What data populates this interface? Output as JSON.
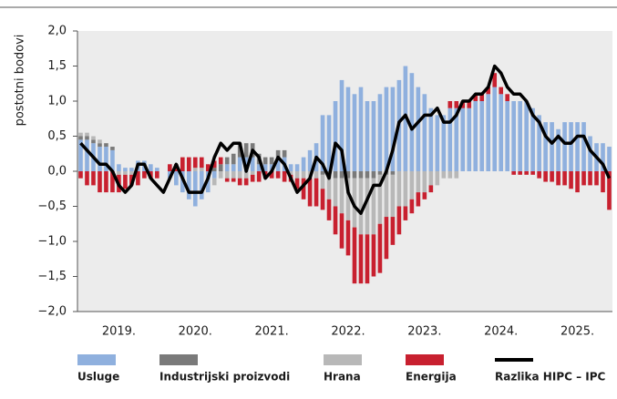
{
  "chart_data": {
    "type": "bar",
    "stacked": true,
    "ylabel": "postotni bodovi",
    "categories": [
      null,
      null,
      null,
      null,
      null,
      null,
      "2019.",
      null,
      null,
      null,
      null,
      null,
      null,
      null,
      null,
      null,
      null,
      null,
      "2020.",
      null,
      null,
      null,
      null,
      null,
      null,
      null,
      null,
      null,
      null,
      null,
      "2021.",
      null,
      null,
      null,
      null,
      null,
      null,
      null,
      null,
      null,
      null,
      null,
      "2022.",
      null,
      null,
      null,
      null,
      null,
      null,
      null,
      null,
      null,
      null,
      null,
      "2023.",
      null,
      null,
      null,
      null,
      null,
      null,
      null,
      null,
      null,
      null,
      null,
      "2024.",
      null,
      null,
      null,
      null,
      null,
      null,
      null,
      null,
      null,
      null,
      null,
      "2025.",
      null,
      null,
      null,
      null,
      null
    ],
    "ylim": [
      -2,
      2
    ],
    "yticks": [
      {
        "value": -2,
        "label": "−2,0"
      },
      {
        "value": -1.5,
        "label": "−1,5"
      },
      {
        "value": -1,
        "label": "−1,0"
      },
      {
        "value": -0.5,
        "label": "−0,5"
      },
      {
        "value": 0,
        "label": "0,0"
      },
      {
        "value": 0.5,
        "label": "0,5"
      },
      {
        "value": 1,
        "label": "1,0"
      },
      {
        "value": 1.5,
        "label": "1,5"
      },
      {
        "value": 2,
        "label": "2,0"
      }
    ],
    "series": [
      {
        "name": "Usluge",
        "color": "#8fb0de",
        "values": [
          0.45,
          0.45,
          0.4,
          0.35,
          0.35,
          0.3,
          0.1,
          0.05,
          0.05,
          0.15,
          0.15,
          0.1,
          0.05,
          0,
          -0.1,
          -0.2,
          -0.3,
          -0.4,
          -0.5,
          -0.4,
          -0.3,
          -0.1,
          0,
          0.1,
          0.1,
          0.2,
          0.2,
          0.2,
          0.1,
          0.1,
          0.1,
          0.2,
          0.2,
          0.1,
          0.1,
          0.2,
          0.3,
          0.4,
          0.8,
          0.8,
          1.0,
          1.3,
          1.2,
          1.1,
          1.2,
          1.0,
          1.0,
          1.1,
          1.2,
          1.2,
          1.3,
          1.5,
          1.4,
          1.2,
          1.1,
          0.9,
          0.8,
          0.8,
          0.9,
          0.9,
          0.9,
          0.9,
          1.0,
          1.0,
          1.1,
          1.2,
          1.1,
          1.0,
          1.0,
          1.0,
          1.0,
          0.9,
          0.8,
          0.7,
          0.7,
          0.6,
          0.7,
          0.7,
          0.7,
          0.7,
          0.5,
          0.4,
          0.4,
          0.35
        ]
      },
      {
        "name": "Industrijski proizvodi",
        "color": "#7a7a7a",
        "values": [
          0.05,
          0.05,
          0.05,
          0.05,
          0.05,
          0.05,
          0,
          0,
          0,
          0,
          0,
          0,
          0,
          0,
          0,
          0,
          0,
          0,
          0,
          0,
          0,
          0.05,
          0.1,
          0.1,
          0.15,
          0.2,
          0.2,
          0.2,
          0.15,
          0.1,
          0.1,
          0.1,
          0.1,
          0,
          0,
          0,
          0,
          0,
          -0.05,
          -0.1,
          -0.1,
          -0.1,
          -0.1,
          -0.1,
          -0.1,
          -0.1,
          -0.1,
          -0.05,
          -0.05,
          -0.05,
          0,
          0,
          0,
          0,
          0,
          0,
          0,
          0,
          0,
          0,
          0,
          0,
          0,
          0,
          0,
          0,
          0,
          0,
          0,
          0,
          0,
          0,
          0,
          0,
          0,
          0,
          0,
          0,
          0,
          0,
          0,
          0,
          0,
          0
        ]
      },
      {
        "name": "Hrana",
        "color": "#b8b8b8",
        "values": [
          0.05,
          0.05,
          0.05,
          0.05,
          0,
          0,
          -0.05,
          -0.05,
          -0.05,
          0,
          0,
          0,
          0,
          0,
          0,
          0,
          0,
          0,
          0.05,
          0.05,
          0,
          -0.1,
          -0.1,
          -0.1,
          -0.1,
          -0.1,
          -0.1,
          -0.05,
          0,
          0,
          0,
          0,
          0,
          -0.05,
          -0.1,
          -0.1,
          -0.1,
          -0.1,
          -0.2,
          -0.3,
          -0.4,
          -0.5,
          -0.6,
          -0.7,
          -0.8,
          -0.8,
          -0.8,
          -0.7,
          -0.6,
          -0.6,
          -0.5,
          -0.5,
          -0.4,
          -0.3,
          -0.3,
          -0.2,
          -0.2,
          -0.1,
          -0.1,
          -0.1,
          0,
          0,
          0,
          0,
          0,
          0,
          0,
          0,
          0,
          0,
          0,
          0,
          0,
          0,
          0,
          0,
          0,
          0,
          0,
          0,
          0,
          0,
          0,
          0
        ]
      },
      {
        "name": "Energija",
        "color": "#c8202f",
        "values": [
          -0.1,
          -0.2,
          -0.2,
          -0.3,
          -0.3,
          -0.3,
          -0.25,
          -0.2,
          -0.15,
          -0.2,
          -0.1,
          -0.1,
          -0.1,
          0,
          0.1,
          0.1,
          0.2,
          0.2,
          0.15,
          0.15,
          0.1,
          0.1,
          0.1,
          -0.05,
          -0.05,
          -0.1,
          -0.1,
          -0.1,
          -0.15,
          -0.1,
          -0.1,
          -0.1,
          -0.15,
          -0.1,
          -0.15,
          -0.3,
          -0.4,
          -0.4,
          -0.3,
          -0.3,
          -0.4,
          -0.5,
          -0.5,
          -0.8,
          -0.7,
          -0.7,
          -0.6,
          -0.7,
          -0.6,
          -0.4,
          -0.4,
          -0.2,
          -0.2,
          -0.2,
          -0.1,
          -0.1,
          0,
          0,
          0.1,
          0.1,
          0.1,
          0.1,
          0.1,
          0.1,
          0.1,
          0.2,
          0.1,
          0.1,
          -0.05,
          -0.05,
          -0.05,
          -0.05,
          -0.1,
          -0.15,
          -0.15,
          -0.2,
          -0.2,
          -0.25,
          -0.3,
          -0.2,
          -0.2,
          -0.2,
          -0.3,
          -0.55
        ]
      },
      {
        "name": "Razlika HIPC – IPC",
        "color": "#000000",
        "type": "line",
        "values": [
          0.4,
          0.3,
          0.2,
          0.1,
          0.1,
          0,
          -0.2,
          -0.3,
          -0.2,
          0.1,
          0.1,
          -0.1,
          -0.2,
          -0.3,
          -0.1,
          0.1,
          -0.1,
          -0.3,
          -0.3,
          -0.3,
          -0.1,
          0.2,
          0.4,
          0.3,
          0.4,
          0.4,
          0,
          0.3,
          0.2,
          -0.1,
          0,
          0.2,
          0.1,
          -0.1,
          -0.3,
          -0.2,
          -0.1,
          0.2,
          0.1,
          -0.1,
          0.4,
          0.3,
          -0.3,
          -0.5,
          -0.6,
          -0.4,
          -0.2,
          -0.2,
          0,
          0.3,
          0.7,
          0.8,
          0.6,
          0.7,
          0.8,
          0.8,
          0.9,
          0.7,
          0.7,
          0.8,
          1.0,
          1.0,
          1.1,
          1.1,
          1.2,
          1.5,
          1.4,
          1.2,
          1.1,
          1.1,
          1.0,
          0.8,
          0.7,
          0.5,
          0.4,
          0.5,
          0.4,
          0.4,
          0.5,
          0.5,
          0.3,
          0.2,
          0.1,
          -0.1
        ]
      }
    ]
  }
}
